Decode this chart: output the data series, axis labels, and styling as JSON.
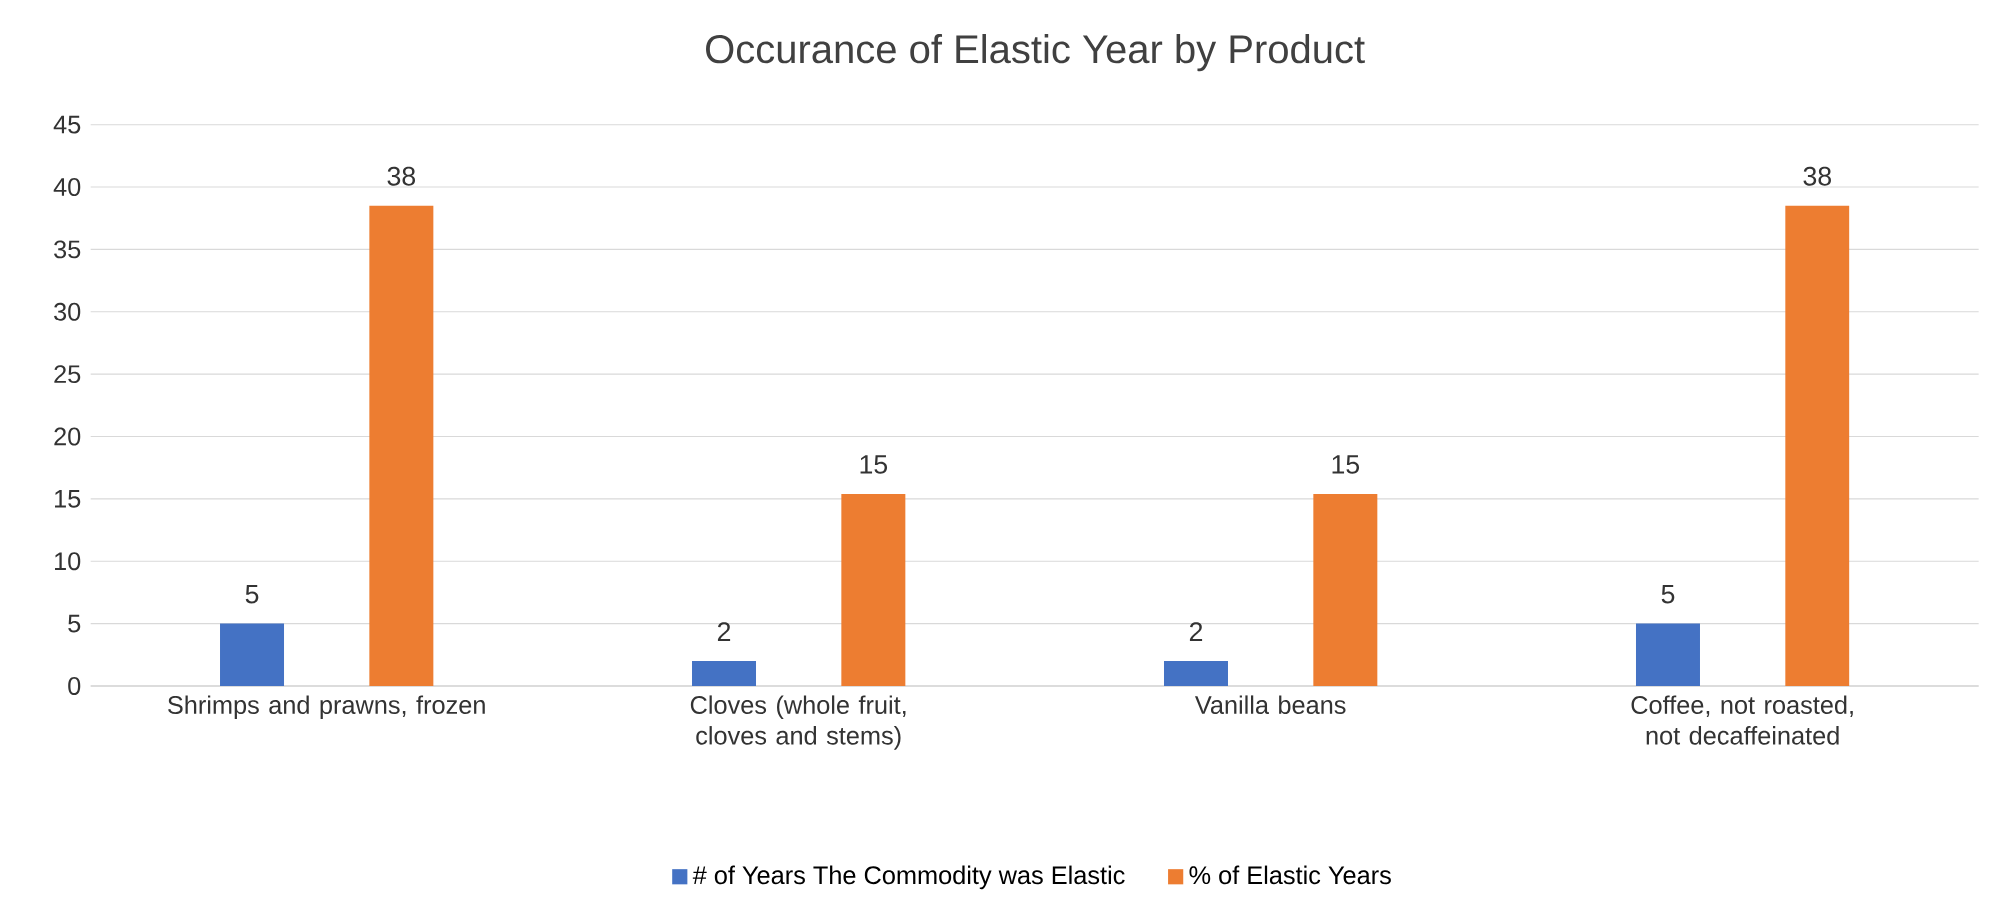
{
  "chart_data": {
    "type": "bar",
    "title": "Occurance of Elastic Year by Product",
    "categories": [
      "Shrimps and prawns, frozen",
      "Cloves (whole fruit, cloves and stems)",
      "Vanilla beans",
      "Coffee, not roasted, not decaffeinated"
    ],
    "series": [
      {
        "name": "# of Years The Commodity was Elastic",
        "color": "#4472c4",
        "values": [
          5,
          2,
          2,
          5
        ],
        "value_labels": [
          "5",
          "2",
          "2",
          "5"
        ]
      },
      {
        "name": "% of Elastic Years",
        "color": "#ed7d31",
        "values": [
          38.5,
          15.4,
          15.4,
          38.5
        ],
        "value_labels": [
          "38",
          "15",
          "15",
          "38"
        ]
      }
    ],
    "ylim": [
      0,
      45
    ],
    "yticks": [
      0,
      5,
      10,
      15,
      20,
      25,
      30,
      35,
      40,
      45
    ],
    "grid": "y",
    "legend": "bottom"
  }
}
